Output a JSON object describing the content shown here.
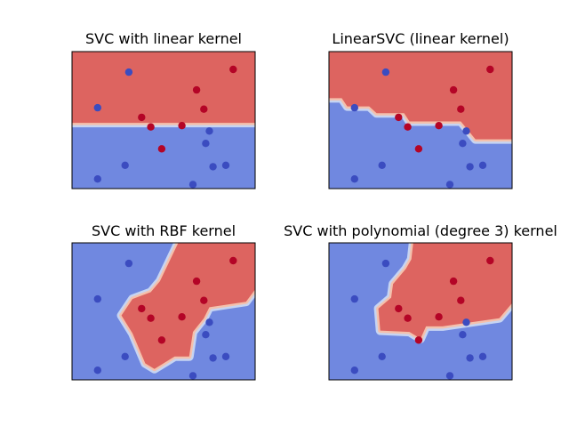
{
  "chart_data": [
    {
      "type": "scatter",
      "title": "SVC with linear kernel",
      "xlabel": "",
      "ylabel": "",
      "xlim": [
        0,
        1
      ],
      "ylim": [
        0,
        1
      ],
      "axis_ticks": "hidden",
      "background": "decision regions",
      "regions": [
        {
          "class": "red",
          "polygon": [
            [
              0,
              0.48
            ],
            [
              1,
              0.48
            ],
            [
              1,
              1
            ],
            [
              0,
              1
            ]
          ]
        }
      ],
      "series": [
        {
          "class": "blue",
          "points": [
            [
              0.31,
              0.85
            ],
            [
              0.14,
              0.59
            ],
            [
              0.75,
              0.42
            ],
            [
              0.73,
              0.33
            ],
            [
              0.77,
              0.16
            ],
            [
              0.84,
              0.17
            ],
            [
              0.29,
              0.17
            ],
            [
              0.14,
              0.07
            ],
            [
              0.66,
              0.03
            ]
          ]
        },
        {
          "class": "red",
          "points": [
            [
              0.88,
              0.87
            ],
            [
              0.68,
              0.72
            ],
            [
              0.72,
              0.58
            ],
            [
              0.38,
              0.52
            ],
            [
              0.43,
              0.45
            ],
            [
              0.6,
              0.46
            ],
            [
              0.49,
              0.29
            ]
          ]
        }
      ]
    },
    {
      "type": "scatter",
      "title": "LinearSVC (linear kernel)",
      "xlabel": "",
      "ylabel": "",
      "xlim": [
        0,
        1
      ],
      "ylim": [
        0,
        1
      ],
      "axis_ticks": "hidden",
      "background": "decision regions",
      "regions": [
        {
          "class": "red",
          "polygon": [
            [
              0,
              0.66
            ],
            [
              0.07,
              0.66
            ],
            [
              0.1,
              0.6
            ],
            [
              0.22,
              0.6
            ],
            [
              0.26,
              0.55
            ],
            [
              0.41,
              0.55
            ],
            [
              0.44,
              0.49
            ],
            [
              0.72,
              0.49
            ],
            [
              0.8,
              0.36
            ],
            [
              1,
              0.36
            ],
            [
              1,
              1
            ],
            [
              0,
              1
            ]
          ]
        }
      ],
      "series": [
        {
          "class": "blue",
          "points": [
            [
              0.31,
              0.85
            ],
            [
              0.14,
              0.59
            ],
            [
              0.75,
              0.42
            ],
            [
              0.73,
              0.33
            ],
            [
              0.77,
              0.16
            ],
            [
              0.84,
              0.17
            ],
            [
              0.29,
              0.17
            ],
            [
              0.14,
              0.07
            ],
            [
              0.66,
              0.03
            ]
          ]
        },
        {
          "class": "red",
          "points": [
            [
              0.88,
              0.87
            ],
            [
              0.68,
              0.72
            ],
            [
              0.72,
              0.58
            ],
            [
              0.38,
              0.52
            ],
            [
              0.43,
              0.45
            ],
            [
              0.6,
              0.46
            ],
            [
              0.49,
              0.29
            ]
          ]
        }
      ]
    },
    {
      "type": "scatter",
      "title": "SVC with RBF kernel",
      "xlabel": "",
      "ylabel": "",
      "xlim": [
        0,
        1
      ],
      "ylim": [
        0,
        1
      ],
      "axis_ticks": "hidden",
      "background": "decision regions",
      "regions": [
        {
          "class": "red",
          "polygon": [
            [
              0.58,
              1
            ],
            [
              1,
              1
            ],
            [
              1,
              0.66
            ],
            [
              0.95,
              0.57
            ],
            [
              0.75,
              0.53
            ],
            [
              0.72,
              0.45
            ],
            [
              0.66,
              0.35
            ],
            [
              0.64,
              0.17
            ],
            [
              0.56,
              0.17
            ],
            [
              0.45,
              0.08
            ],
            [
              0.4,
              0.12
            ],
            [
              0.33,
              0.34
            ],
            [
              0.27,
              0.47
            ],
            [
              0.33,
              0.59
            ],
            [
              0.43,
              0.64
            ],
            [
              0.48,
              0.72
            ]
          ]
        }
      ],
      "series": [
        {
          "class": "blue",
          "points": [
            [
              0.31,
              0.85
            ],
            [
              0.14,
              0.59
            ],
            [
              0.75,
              0.42
            ],
            [
              0.73,
              0.33
            ],
            [
              0.77,
              0.16
            ],
            [
              0.84,
              0.17
            ],
            [
              0.29,
              0.17
            ],
            [
              0.14,
              0.07
            ],
            [
              0.66,
              0.03
            ]
          ]
        },
        {
          "class": "red",
          "points": [
            [
              0.88,
              0.87
            ],
            [
              0.68,
              0.72
            ],
            [
              0.72,
              0.58
            ],
            [
              0.38,
              0.52
            ],
            [
              0.43,
              0.45
            ],
            [
              0.6,
              0.46
            ],
            [
              0.49,
              0.29
            ]
          ]
        }
      ]
    },
    {
      "type": "scatter",
      "title": "SVC with polynomial (degree 3) kernel",
      "xlabel": "",
      "ylabel": "",
      "xlim": [
        0,
        1
      ],
      "ylim": [
        0,
        1
      ],
      "axis_ticks": "hidden",
      "background": "decision regions",
      "regions": [
        {
          "class": "red",
          "polygon": [
            [
              0.46,
              1
            ],
            [
              1,
              1
            ],
            [
              1,
              0.56
            ],
            [
              0.93,
              0.45
            ],
            [
              0.62,
              0.39
            ],
            [
              0.53,
              0.39
            ],
            [
              0.5,
              0.3
            ],
            [
              0.44,
              0.35
            ],
            [
              0.28,
              0.36
            ],
            [
              0.27,
              0.52
            ],
            [
              0.34,
              0.6
            ],
            [
              0.35,
              0.7
            ],
            [
              0.42,
              0.81
            ],
            [
              0.45,
              0.88
            ]
          ]
        }
      ],
      "series": [
        {
          "class": "blue",
          "points": [
            [
              0.31,
              0.85
            ],
            [
              0.14,
              0.59
            ],
            [
              0.75,
              0.42
            ],
            [
              0.73,
              0.33
            ],
            [
              0.77,
              0.16
            ],
            [
              0.84,
              0.17
            ],
            [
              0.29,
              0.17
            ],
            [
              0.14,
              0.07
            ],
            [
              0.66,
              0.03
            ]
          ]
        },
        {
          "class": "red",
          "points": [
            [
              0.88,
              0.87
            ],
            [
              0.68,
              0.72
            ],
            [
              0.72,
              0.58
            ],
            [
              0.38,
              0.52
            ],
            [
              0.43,
              0.45
            ],
            [
              0.6,
              0.46
            ],
            [
              0.49,
              0.29
            ]
          ]
        }
      ]
    }
  ],
  "colors": {
    "region_blue": "#7088e0",
    "region_red": "#dd6460",
    "boundary_light_blue": "#c6d4f2",
    "boundary_light_red": "#f4c1ad",
    "point_blue": "#3b4cc0",
    "point_red": "#b40426",
    "frame": "#000000"
  }
}
